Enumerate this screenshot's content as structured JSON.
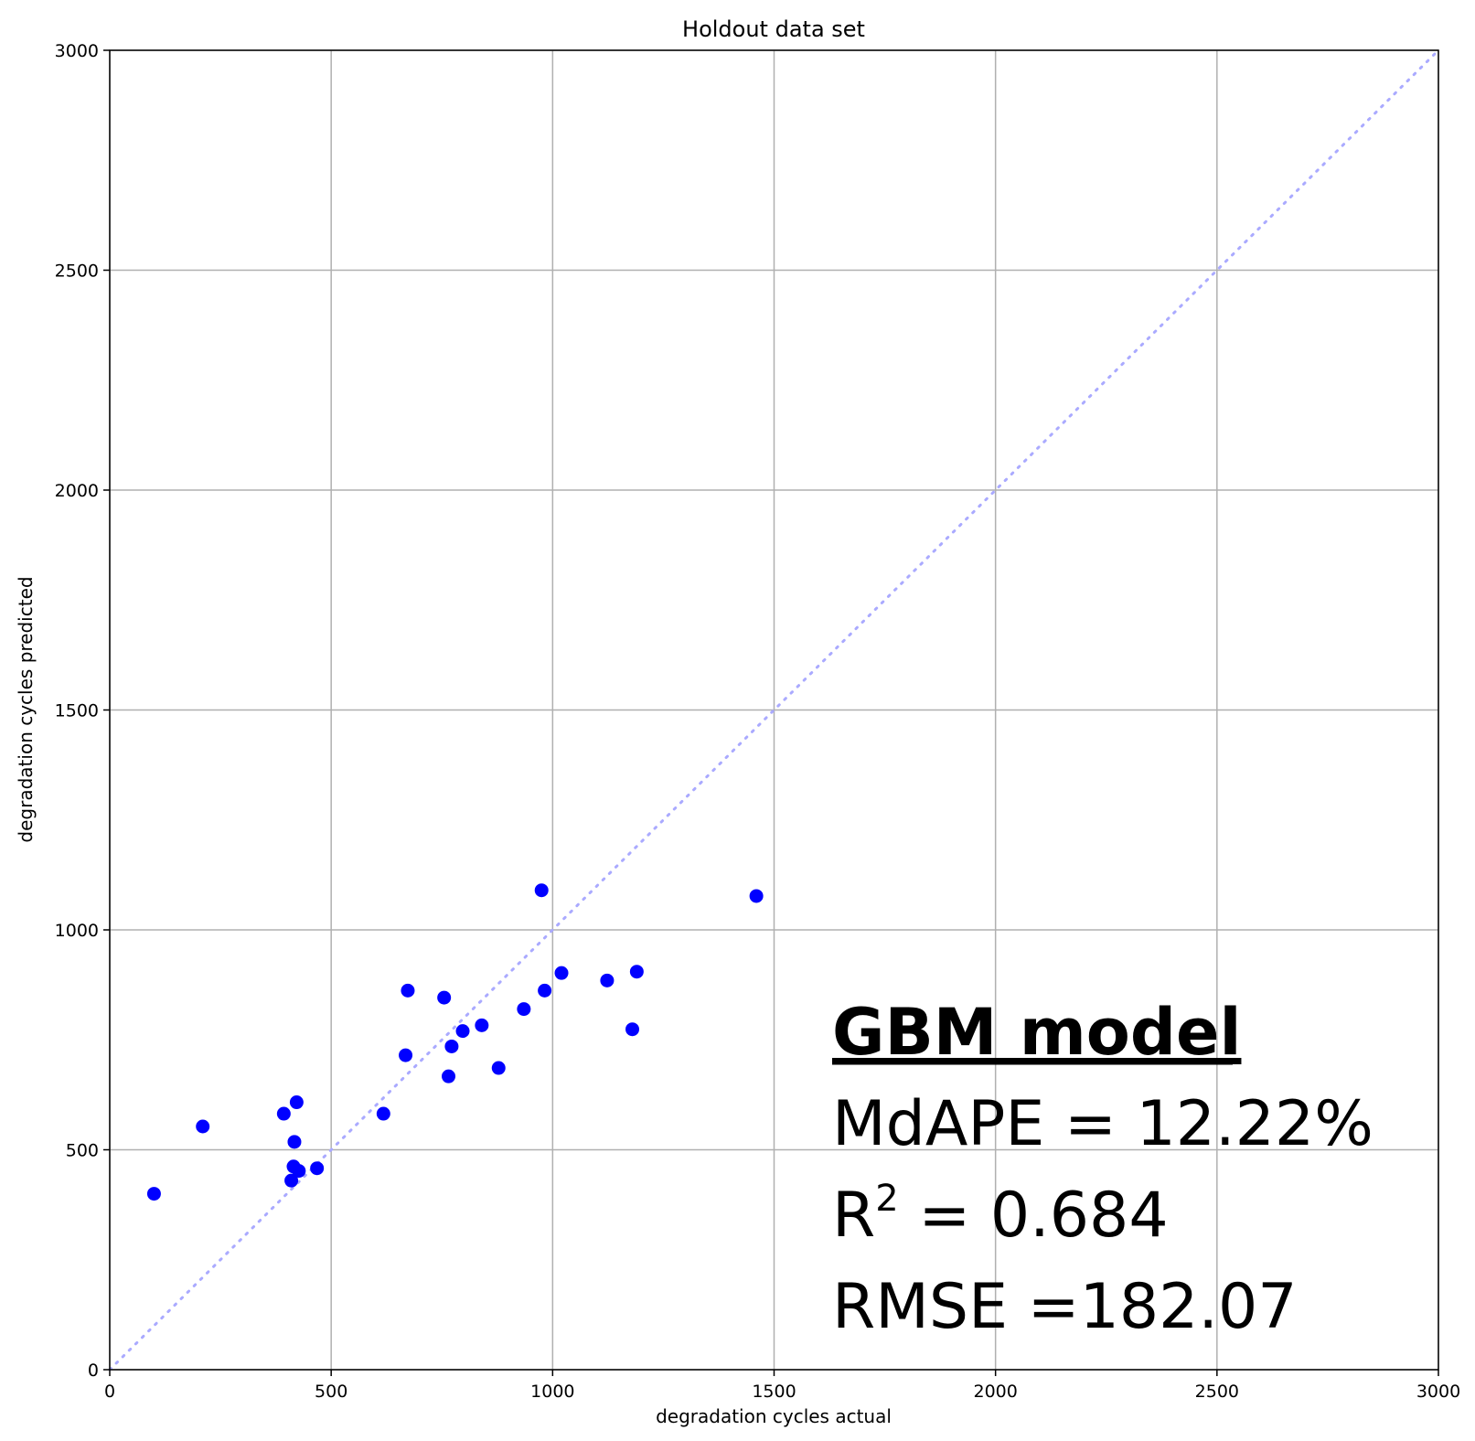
{
  "chart_data": {
    "type": "scatter",
    "title": "Holdout data set",
    "xlabel": "degradation cycles actual",
    "ylabel": "degradation cycles predicted",
    "xlim": [
      0,
      3000
    ],
    "ylim": [
      0,
      3000
    ],
    "xticks": [
      "0",
      "500",
      "1000",
      "1500",
      "2000",
      "2500",
      "3000"
    ],
    "yticks": [
      "0",
      "500",
      "1000",
      "1500",
      "2000",
      "2500",
      "3000"
    ],
    "grid": true,
    "point_color": "#0000ff",
    "reference_line": {
      "style": "dotted",
      "color": "#aaaaff",
      "from": [
        0,
        0
      ],
      "to": [
        3000,
        3000
      ]
    },
    "points": [
      {
        "x": 100,
        "y": 400
      },
      {
        "x": 210,
        "y": 553
      },
      {
        "x": 393,
        "y": 582
      },
      {
        "x": 410,
        "y": 430
      },
      {
        "x": 415,
        "y": 462
      },
      {
        "x": 417,
        "y": 518
      },
      {
        "x": 422,
        "y": 608
      },
      {
        "x": 427,
        "y": 452
      },
      {
        "x": 468,
        "y": 458
      },
      {
        "x": 618,
        "y": 582
      },
      {
        "x": 668,
        "y": 715
      },
      {
        "x": 673,
        "y": 862
      },
      {
        "x": 755,
        "y": 846
      },
      {
        "x": 765,
        "y": 667
      },
      {
        "x": 772,
        "y": 735
      },
      {
        "x": 797,
        "y": 770
      },
      {
        "x": 840,
        "y": 783
      },
      {
        "x": 878,
        "y": 686
      },
      {
        "x": 935,
        "y": 820
      },
      {
        "x": 975,
        "y": 1090
      },
      {
        "x": 982,
        "y": 862
      },
      {
        "x": 1020,
        "y": 902
      },
      {
        "x": 1123,
        "y": 885
      },
      {
        "x": 1180,
        "y": 774
      },
      {
        "x": 1190,
        "y": 905
      },
      {
        "x": 1460,
        "y": 1077
      }
    ],
    "annotations": {
      "title": "GBM model",
      "mdape": "MdAPE = 12.22%",
      "r2_prefix": "R",
      "r2_sup": "2",
      "r2_suffix": " = 0.684",
      "rmse": "RMSE =182.07"
    }
  }
}
